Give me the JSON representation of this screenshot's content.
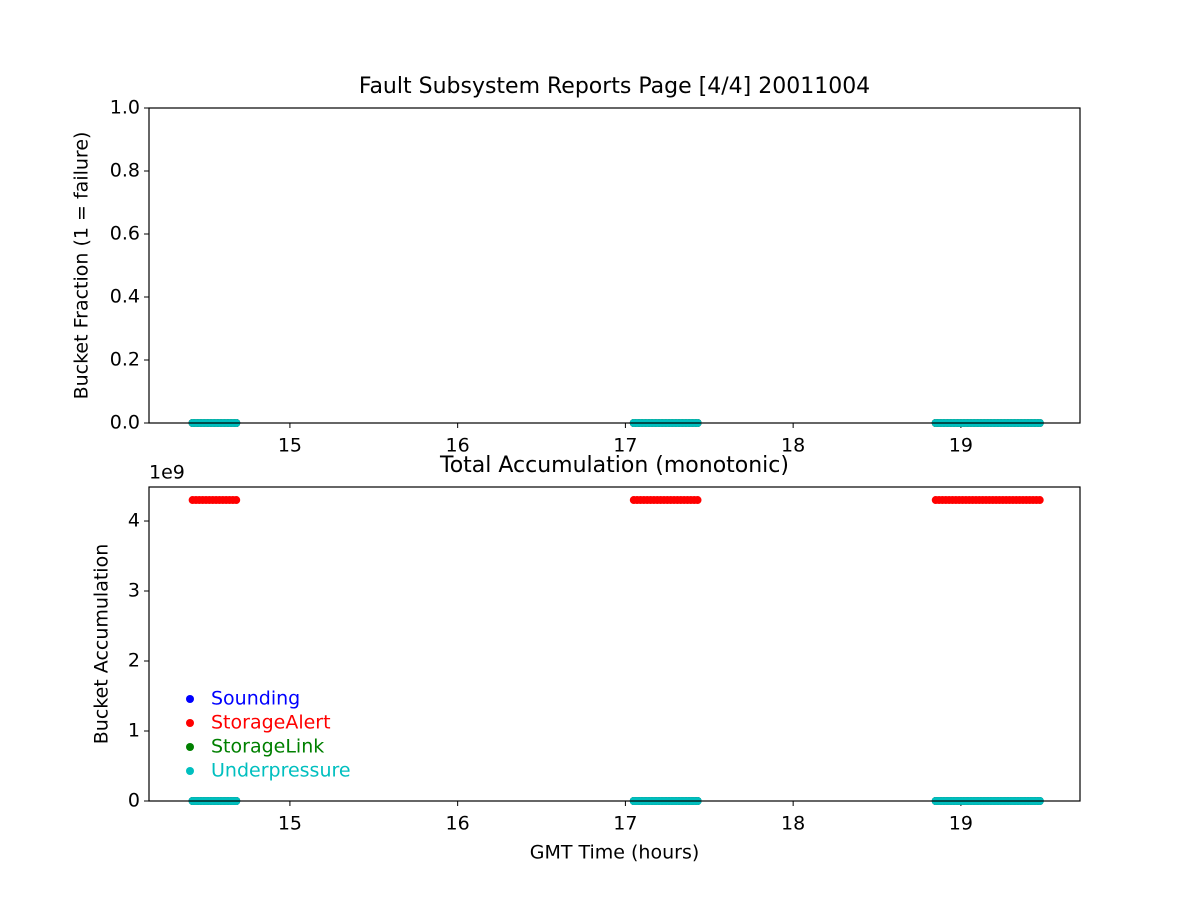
{
  "chart_data": [
    {
      "type": "scatter",
      "title": "Fault Subsystem Reports Page [4/4] 20011004",
      "y_label": "Bucket Fraction (1 = failure)",
      "x": [
        14.42,
        14.44,
        14.46,
        14.48,
        14.5,
        14.52,
        14.54,
        14.56,
        14.58,
        14.6,
        14.62,
        14.64,
        14.66,
        14.68,
        17.05,
        17.07,
        17.09,
        17.11,
        17.13,
        17.15,
        17.17,
        17.19,
        17.21,
        17.23,
        17.25,
        17.27,
        17.29,
        17.31,
        17.33,
        17.35,
        17.37,
        17.39,
        17.41,
        17.43,
        18.85,
        18.87,
        18.89,
        18.91,
        18.93,
        18.95,
        18.97,
        18.99,
        19.01,
        19.03,
        19.05,
        19.07,
        19.09,
        19.11,
        19.13,
        19.15,
        19.17,
        19.19,
        19.21,
        19.23,
        19.25,
        19.27,
        19.29,
        19.31,
        19.33,
        19.35,
        19.37,
        19.39,
        19.41,
        19.43,
        19.45,
        19.47
      ],
      "series": [
        {
          "name": "Sounding",
          "color": "#0000ff",
          "values": [
            0,
            0,
            0,
            0,
            0,
            0,
            0,
            0,
            0,
            0,
            0,
            0,
            0,
            0,
            0,
            0,
            0,
            0,
            0,
            0,
            0,
            0,
            0,
            0,
            0,
            0,
            0,
            0,
            0,
            0,
            0,
            0,
            0,
            0,
            0,
            0,
            0,
            0,
            0,
            0,
            0,
            0,
            0,
            0,
            0,
            0,
            0,
            0,
            0,
            0,
            0,
            0,
            0,
            0,
            0,
            0,
            0,
            0,
            0,
            0,
            0,
            0,
            0,
            0,
            0,
            0
          ]
        },
        {
          "name": "StorageAlert",
          "color": "#ff0000",
          "values": [
            0,
            0,
            0,
            0,
            0,
            0,
            0,
            0,
            0,
            0,
            0,
            0,
            0,
            0,
            0,
            0,
            0,
            0,
            0,
            0,
            0,
            0,
            0,
            0,
            0,
            0,
            0,
            0,
            0,
            0,
            0,
            0,
            0,
            0,
            0,
            0,
            0,
            0,
            0,
            0,
            0,
            0,
            0,
            0,
            0,
            0,
            0,
            0,
            0,
            0,
            0,
            0,
            0,
            0,
            0,
            0,
            0,
            0,
            0,
            0,
            0,
            0,
            0,
            0,
            0,
            0
          ]
        },
        {
          "name": "StorageLink",
          "color": "#008000",
          "values": [
            0,
            0,
            0,
            0,
            0,
            0,
            0,
            0,
            0,
            0,
            0,
            0,
            0,
            0,
            0,
            0,
            0,
            0,
            0,
            0,
            0,
            0,
            0,
            0,
            0,
            0,
            0,
            0,
            0,
            0,
            0,
            0,
            0,
            0,
            0,
            0,
            0,
            0,
            0,
            0,
            0,
            0,
            0,
            0,
            0,
            0,
            0,
            0,
            0,
            0,
            0,
            0,
            0,
            0,
            0,
            0,
            0,
            0,
            0,
            0,
            0,
            0,
            0,
            0,
            0,
            0
          ]
        },
        {
          "name": "Underpressure",
          "color": "#00bfbf",
          "values": [
            0,
            0,
            0,
            0,
            0,
            0,
            0,
            0,
            0,
            0,
            0,
            0,
            0,
            0,
            0,
            0,
            0,
            0,
            0,
            0,
            0,
            0,
            0,
            0,
            0,
            0,
            0,
            0,
            0,
            0,
            0,
            0,
            0,
            0,
            0,
            0,
            0,
            0,
            0,
            0,
            0,
            0,
            0,
            0,
            0,
            0,
            0,
            0,
            0,
            0,
            0,
            0,
            0,
            0,
            0,
            0,
            0,
            0,
            0,
            0,
            0,
            0,
            0,
            0,
            0,
            0
          ]
        }
      ],
      "xlim": [
        14.16,
        19.71
      ],
      "xticks": [
        15,
        16,
        17,
        18,
        19
      ],
      "ylim": [
        0,
        1
      ],
      "yticks": [
        {
          "value": 0,
          "label": "0.0"
        },
        {
          "value": 0.2,
          "label": "0.2"
        },
        {
          "value": 0.4,
          "label": "0.4"
        },
        {
          "value": 0.6,
          "label": "0.6"
        },
        {
          "value": 0.8,
          "label": "0.8"
        },
        {
          "value": 1,
          "label": "1.0"
        }
      ]
    },
    {
      "type": "scatter",
      "title": "Total Accumulation (monotonic)",
      "x_label": "GMT Time (hours)",
      "y_label": "Bucket Accumulation",
      "y_offset_label": "1e9",
      "legend": "lower left",
      "x": [
        14.42,
        14.44,
        14.46,
        14.48,
        14.5,
        14.52,
        14.54,
        14.56,
        14.58,
        14.6,
        14.62,
        14.64,
        14.66,
        14.68,
        17.05,
        17.07,
        17.09,
        17.11,
        17.13,
        17.15,
        17.17,
        17.19,
        17.21,
        17.23,
        17.25,
        17.27,
        17.29,
        17.31,
        17.33,
        17.35,
        17.37,
        17.39,
        17.41,
        17.43,
        18.85,
        18.87,
        18.89,
        18.91,
        18.93,
        18.95,
        18.97,
        18.99,
        19.01,
        19.03,
        19.05,
        19.07,
        19.09,
        19.11,
        19.13,
        19.15,
        19.17,
        19.19,
        19.21,
        19.23,
        19.25,
        19.27,
        19.29,
        19.31,
        19.33,
        19.35,
        19.37,
        19.39,
        19.41,
        19.43,
        19.45,
        19.47
      ],
      "series": [
        {
          "name": "Sounding",
          "color": "#0000ff",
          "values": [
            0,
            0,
            0,
            0,
            0,
            0,
            0,
            0,
            0,
            0,
            0,
            0,
            0,
            0,
            0,
            0,
            0,
            0,
            0,
            0,
            0,
            0,
            0,
            0,
            0,
            0,
            0,
            0,
            0,
            0,
            0,
            0,
            0,
            0,
            0,
            0,
            0,
            0,
            0,
            0,
            0,
            0,
            0,
            0,
            0,
            0,
            0,
            0,
            0,
            0,
            0,
            0,
            0,
            0,
            0,
            0,
            0,
            0,
            0,
            0,
            0,
            0,
            0,
            0,
            0,
            0
          ]
        },
        {
          "name": "StorageAlert",
          "color": "#ff0000",
          "values": [
            4300000000.0,
            4300000000.0,
            4300000000.0,
            4300000000.0,
            4300000000.0,
            4300000000.0,
            4300000000.0,
            4300000000.0,
            4300000000.0,
            4300000000.0,
            4300000000.0,
            4300000000.0,
            4300000000.0,
            4300000000.0,
            4300000000.0,
            4300000000.0,
            4300000000.0,
            4300000000.0,
            4300000000.0,
            4300000000.0,
            4300000000.0,
            4300000000.0,
            4300000000.0,
            4300000000.0,
            4300000000.0,
            4300000000.0,
            4300000000.0,
            4300000000.0,
            4300000000.0,
            4300000000.0,
            4300000000.0,
            4300000000.0,
            4300000000.0,
            4300000000.0,
            4300000000.0,
            4300000000.0,
            4300000000.0,
            4300000000.0,
            4300000000.0,
            4300000000.0,
            4300000000.0,
            4300000000.0,
            4300000000.0,
            4300000000.0,
            4300000000.0,
            4300000000.0,
            4300000000.0,
            4300000000.0,
            4300000000.0,
            4300000000.0,
            4300000000.0,
            4300000000.0,
            4300000000.0,
            4300000000.0,
            4300000000.0,
            4300000000.0,
            4300000000.0,
            4300000000.0,
            4300000000.0,
            4300000000.0,
            4300000000.0,
            4300000000.0,
            4300000000.0,
            4300000000.0,
            4300000000.0,
            4300000000.0
          ]
        },
        {
          "name": "StorageLink",
          "color": "#008000",
          "values": [
            0,
            0,
            0,
            0,
            0,
            0,
            0,
            0,
            0,
            0,
            0,
            0,
            0,
            0,
            0,
            0,
            0,
            0,
            0,
            0,
            0,
            0,
            0,
            0,
            0,
            0,
            0,
            0,
            0,
            0,
            0,
            0,
            0,
            0,
            0,
            0,
            0,
            0,
            0,
            0,
            0,
            0,
            0,
            0,
            0,
            0,
            0,
            0,
            0,
            0,
            0,
            0,
            0,
            0,
            0,
            0,
            0,
            0,
            0,
            0,
            0,
            0,
            0,
            0,
            0,
            0
          ]
        },
        {
          "name": "Underpressure",
          "color": "#00bfbf",
          "values": [
            0,
            0,
            0,
            0,
            0,
            0,
            0,
            0,
            0,
            0,
            0,
            0,
            0,
            0,
            0,
            0,
            0,
            0,
            0,
            0,
            0,
            0,
            0,
            0,
            0,
            0,
            0,
            0,
            0,
            0,
            0,
            0,
            0,
            0,
            0,
            0,
            0,
            0,
            0,
            0,
            0,
            0,
            0,
            0,
            0,
            0,
            0,
            0,
            0,
            0,
            0,
            0,
            0,
            0,
            0,
            0,
            0,
            0,
            0,
            0,
            0,
            0,
            0,
            0,
            0,
            0
          ]
        }
      ],
      "xlim": [
        14.16,
        19.71
      ],
      "xticks": [
        15,
        16,
        17,
        18,
        19
      ],
      "ylim": [
        0,
        4486000000.0
      ],
      "yticks": [
        {
          "value": 0,
          "label": "0"
        },
        {
          "value": 1000000000.0,
          "label": "1"
        },
        {
          "value": 2000000000.0,
          "label": "2"
        },
        {
          "value": 3000000000.0,
          "label": "3"
        },
        {
          "value": 4000000000.0,
          "label": "4"
        }
      ]
    }
  ]
}
